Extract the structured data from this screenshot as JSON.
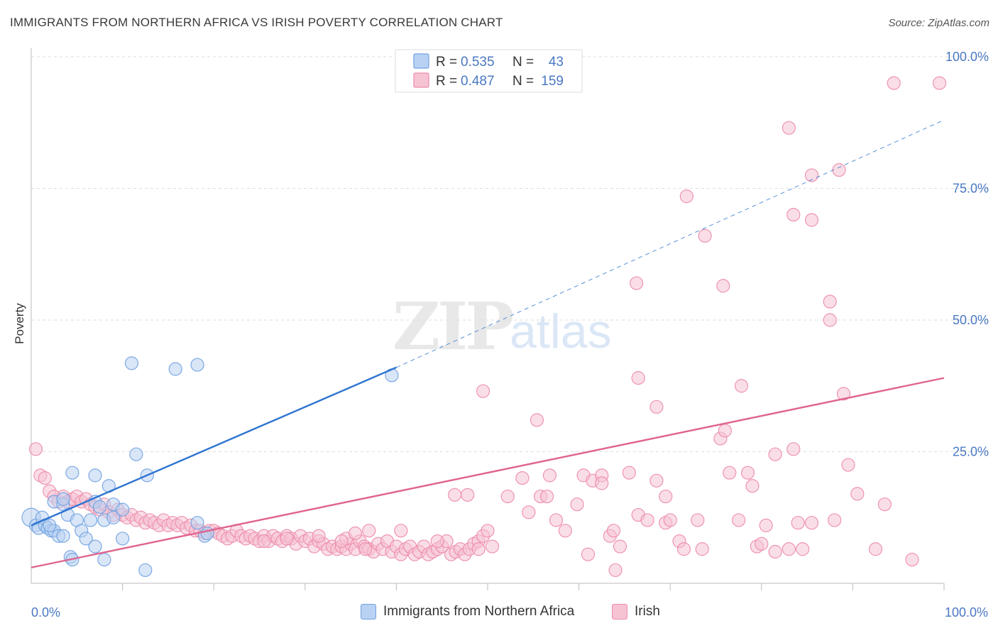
{
  "title": "IMMIGRANTS FROM NORTHERN AFRICA VS IRISH POVERTY CORRELATION CHART",
  "source": "Source: ZipAtlas.com",
  "watermark": {
    "zip": "ZIP",
    "atlas": "atlas"
  },
  "colors": {
    "blue": "#6fa1e0",
    "blue_fill": "#b9d2f3",
    "blue_line": "#2e74d0",
    "pink": "#ec8aa9",
    "pink_fill": "#f6c3d3",
    "pink_line": "#e0648e",
    "tick": "#4a78c2"
  },
  "legend": {
    "rows": [
      {
        "r_label": "R = ",
        "r_value": "0.535",
        "n_label": "N = ",
        "n_value": "43"
      },
      {
        "r_label": "R = ",
        "r_value": "0.487",
        "n_label": "N = ",
        "n_value": "159"
      }
    ]
  },
  "bottom_legend": {
    "items": [
      "Immigrants from Northern Africa",
      "Irish"
    ]
  },
  "chart_data": {
    "type": "scatter",
    "title": "IMMIGRANTS FROM NORTHERN AFRICA VS IRISH POVERTY CORRELATION CHART",
    "xlabel": "",
    "ylabel": "Poverty",
    "xlim": [
      0,
      100
    ],
    "ylim": [
      0,
      100
    ],
    "x_tick_labels": [
      "0.0%",
      "100.0%"
    ],
    "y_ticks": [
      25,
      50,
      75,
      100
    ],
    "y_tick_labels": [
      "25.0%",
      "50.0%",
      "75.0%",
      "100.0%"
    ],
    "grid": true,
    "legend_position": "top-center",
    "series": [
      {
        "name": "Immigrants from Northern Africa",
        "color": "#6fa1e0",
        "r": "0.535",
        "n": "43",
        "trend": {
          "x": [
            0,
            40
          ],
          "y": [
            11,
            41
          ],
          "dashed_to": [
            100,
            88
          ]
        },
        "points": [
          [
            0,
            12.5
          ],
          [
            0.5,
            11
          ],
          [
            0.8,
            10.5
          ],
          [
            1.2,
            12.5
          ],
          [
            1.5,
            11
          ],
          [
            1.8,
            10.5
          ],
          [
            2.2,
            10
          ],
          [
            2.5,
            10
          ],
          [
            2.0,
            11
          ],
          [
            2.5,
            15.5
          ],
          [
            3,
            9
          ],
          [
            3.5,
            9
          ],
          [
            3.5,
            15
          ],
          [
            4,
            13
          ],
          [
            4.5,
            21
          ],
          [
            5,
            12
          ],
          [
            4.3,
            5
          ],
          [
            4.5,
            4.5
          ],
          [
            3.5,
            16
          ],
          [
            5.5,
            10
          ],
          [
            6,
            8.5
          ],
          [
            6.5,
            12
          ],
          [
            7,
            7
          ],
          [
            7,
            15.5
          ],
          [
            7,
            20.5
          ],
          [
            7.5,
            14.5
          ],
          [
            8,
            4.5
          ],
          [
            8,
            12
          ],
          [
            8.5,
            18.5
          ],
          [
            9,
            15
          ],
          [
            9,
            12.5
          ],
          [
            10,
            8.5
          ],
          [
            10,
            14
          ],
          [
            11,
            41.8
          ],
          [
            11.5,
            24.5
          ],
          [
            12.7,
            20.5
          ],
          [
            12.5,
            2.5
          ],
          [
            15.8,
            40.7
          ],
          [
            18.2,
            41.5
          ],
          [
            18.2,
            11.5
          ],
          [
            19,
            9
          ],
          [
            19.3,
            9.5
          ],
          [
            39.5,
            39.5
          ]
        ]
      },
      {
        "name": "Irish",
        "color": "#ec8aa9",
        "r": "0.487",
        "n": "159",
        "trend": {
          "x": [
            0,
            100
          ],
          "y": [
            3,
            39
          ]
        },
        "points": [
          [
            0.5,
            25.5
          ],
          [
            1,
            20.5
          ],
          [
            1.5,
            20
          ],
          [
            2,
            17.5
          ],
          [
            2.5,
            16.5
          ],
          [
            3,
            15.5
          ],
          [
            3.5,
            16.5
          ],
          [
            4,
            15.5
          ],
          [
            4.5,
            16
          ],
          [
            5,
            16.5
          ],
          [
            5.5,
            15.5
          ],
          [
            6,
            16
          ],
          [
            6.5,
            15
          ],
          [
            7,
            14.5
          ],
          [
            7.5,
            14
          ],
          [
            8,
            15
          ],
          [
            8.5,
            13.5
          ],
          [
            9,
            13
          ],
          [
            9.5,
            14
          ],
          [
            10,
            13
          ],
          [
            10.5,
            12.5
          ],
          [
            11,
            13
          ],
          [
            11.5,
            12
          ],
          [
            12,
            12.5
          ],
          [
            12.5,
            11.5
          ],
          [
            13,
            12
          ],
          [
            13.5,
            11.5
          ],
          [
            14,
            11
          ],
          [
            14.5,
            12
          ],
          [
            15,
            11
          ],
          [
            15.5,
            11.5
          ],
          [
            16,
            11
          ],
          [
            16.5,
            11.5
          ],
          [
            17,
            10.5
          ],
          [
            17.5,
            11
          ],
          [
            18,
            10
          ],
          [
            18.5,
            10
          ],
          [
            19,
            9.5
          ],
          [
            19.5,
            10
          ],
          [
            20,
            10
          ],
          [
            20.5,
            9.5
          ],
          [
            21,
            9
          ],
          [
            21.5,
            8.5
          ],
          [
            22,
            9
          ],
          [
            22.5,
            10
          ],
          [
            23,
            9
          ],
          [
            23.5,
            8.5
          ],
          [
            24,
            9
          ],
          [
            24.5,
            8.5
          ],
          [
            25,
            8
          ],
          [
            25.5,
            9
          ],
          [
            26,
            8
          ],
          [
            26.5,
            9
          ],
          [
            27,
            8.5
          ],
          [
            27.5,
            8
          ],
          [
            28,
            9
          ],
          [
            28.5,
            8.5
          ],
          [
            29,
            7.5
          ],
          [
            29.5,
            9
          ],
          [
            30,
            8
          ],
          [
            30.5,
            8.5
          ],
          [
            31,
            7
          ],
          [
            31.5,
            8
          ],
          [
            32,
            7.5
          ],
          [
            32.5,
            6.5
          ],
          [
            33,
            7
          ],
          [
            33.5,
            6.5
          ],
          [
            34,
            7
          ],
          [
            34.5,
            6.5
          ],
          [
            35,
            7.5
          ],
          [
            35.5,
            6.5
          ],
          [
            36,
            8
          ],
          [
            36.5,
            7
          ],
          [
            37,
            6.5
          ],
          [
            37.5,
            6
          ],
          [
            38,
            7.5
          ],
          [
            38.5,
            6.5
          ],
          [
            39,
            8
          ],
          [
            39.5,
            6
          ],
          [
            40,
            7
          ],
          [
            40.5,
            5.5
          ],
          [
            41,
            6.5
          ],
          [
            41.5,
            7
          ],
          [
            42,
            5.5
          ],
          [
            42.5,
            6
          ],
          [
            43,
            7
          ],
          [
            43.5,
            5.5
          ],
          [
            44,
            6
          ],
          [
            44.5,
            6.5
          ],
          [
            45,
            7
          ],
          [
            45.5,
            8
          ],
          [
            46,
            5.5
          ],
          [
            46.5,
            6
          ],
          [
            47,
            6.5
          ],
          [
            47.5,
            5.5
          ],
          [
            48,
            6.5
          ],
          [
            48.5,
            7.5
          ],
          [
            49,
            8
          ],
          [
            49.5,
            9
          ],
          [
            50,
            10
          ],
          [
            25.5,
            8
          ],
          [
            28,
            8.5
          ],
          [
            31.5,
            9
          ],
          [
            34.5,
            8.5
          ],
          [
            37,
            10
          ],
          [
            44.5,
            8
          ],
          [
            49,
            6.5
          ],
          [
            50.5,
            7
          ],
          [
            40.5,
            10
          ],
          [
            34,
            8
          ],
          [
            35.5,
            9.5
          ],
          [
            36.6,
            6.5
          ],
          [
            46.4,
            16.8
          ],
          [
            47.8,
            16.8
          ],
          [
            49.5,
            36.5
          ],
          [
            52.2,
            16.5
          ],
          [
            55.8,
            16.5
          ],
          [
            56.5,
            16.5
          ],
          [
            53.8,
            20
          ],
          [
            56.8,
            20.5
          ],
          [
            55.4,
            31
          ],
          [
            57.5,
            12
          ],
          [
            58.5,
            10
          ],
          [
            54.5,
            13.5
          ],
          [
            59.8,
            15
          ],
          [
            60.5,
            20.5
          ],
          [
            61.5,
            19.5
          ],
          [
            62.5,
            20.5
          ],
          [
            63.4,
            9
          ],
          [
            63.8,
            10
          ],
          [
            61,
            5.5
          ],
          [
            62.5,
            19
          ],
          [
            64.5,
            7
          ],
          [
            65.5,
            21
          ],
          [
            64,
            2.5
          ],
          [
            66.5,
            13
          ],
          [
            67.5,
            12
          ],
          [
            69.5,
            11.5
          ],
          [
            68.5,
            19.5
          ],
          [
            66.5,
            39
          ],
          [
            68.5,
            33.5
          ],
          [
            69.5,
            16.5
          ],
          [
            70,
            12
          ],
          [
            71,
            8
          ],
          [
            71.5,
            6.5
          ],
          [
            73,
            12
          ],
          [
            73.5,
            6.5
          ],
          [
            75.5,
            27.5
          ],
          [
            76,
            29
          ],
          [
            76.5,
            21
          ],
          [
            77.5,
            12
          ],
          [
            66.3,
            57
          ],
          [
            71.8,
            73.5
          ],
          [
            73.8,
            66
          ],
          [
            75.8,
            56.5
          ],
          [
            77.8,
            37.5
          ],
          [
            78.5,
            21
          ],
          [
            79,
            18.5
          ],
          [
            80.5,
            11
          ],
          [
            81.5,
            24.5
          ],
          [
            79.5,
            7
          ],
          [
            80,
            7.5
          ],
          [
            81.5,
            6
          ],
          [
            83,
            6.5
          ],
          [
            83.5,
            25.5
          ],
          [
            84,
            11.5
          ],
          [
            83,
            86.5
          ],
          [
            83.5,
            70
          ],
          [
            85.5,
            69
          ],
          [
            85.5,
            77.5
          ],
          [
            87.5,
            53.5
          ],
          [
            87.5,
            50
          ],
          [
            88.5,
            78.5
          ],
          [
            89,
            36
          ],
          [
            89.5,
            22.5
          ],
          [
            85.5,
            11.5
          ],
          [
            84.5,
            6.5
          ],
          [
            88,
            12
          ],
          [
            90.5,
            17
          ],
          [
            92.5,
            6.5
          ],
          [
            93.5,
            15
          ],
          [
            94.5,
            95
          ],
          [
            96.5,
            4.5
          ],
          [
            99.5,
            95
          ]
        ]
      }
    ]
  }
}
